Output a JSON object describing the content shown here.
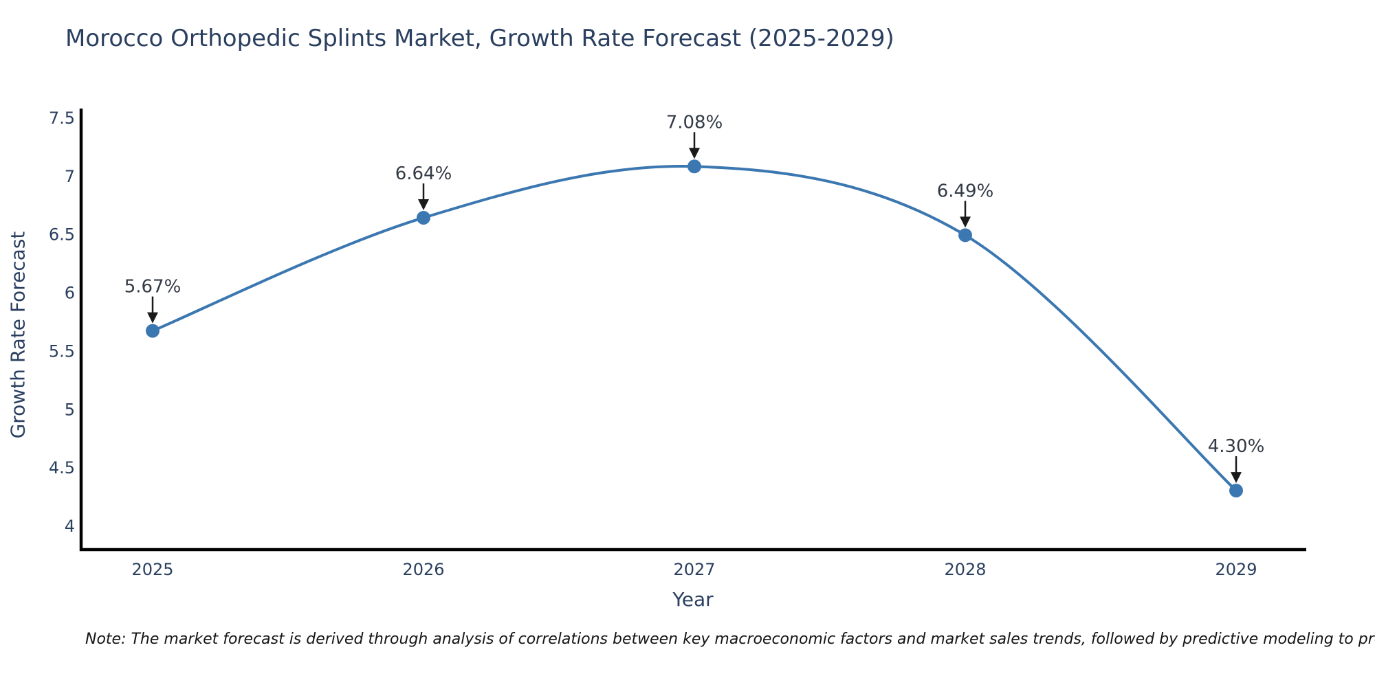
{
  "page": {
    "title": "Morocco Orthopedic Splints Market, Growth Rate Forecast (2025-2029)",
    "note": "Note: The market forecast is derived through analysis of correlations between key macroeconomic factors and market sales trends, followed by predictive modeling to project future sales"
  },
  "chart_data": {
    "type": "line",
    "title": "Morocco Orthopedic Splints Market, Growth Rate Forecast (2025-2029)",
    "xlabel": "Year",
    "ylabel": "Growth Rate Forecast",
    "categories": [
      "2025",
      "2026",
      "2027",
      "2028",
      "2029"
    ],
    "series": [
      {
        "name": "Growth Rate Forecast",
        "values": [
          5.67,
          6.64,
          7.08,
          6.49,
          4.3
        ],
        "point_labels": [
          "5.67%",
          "6.64%",
          "7.08%",
          "6.49%",
          "4.30%"
        ]
      }
    ],
    "y_ticks": [
      7.5,
      7,
      6.5,
      6,
      5.5,
      5,
      4.5,
      4
    ],
    "ylim": [
      3.79,
      7.58
    ],
    "grid": false,
    "legend": "none",
    "line_shape": "spline",
    "annotation_style": "text-with-down-arrow",
    "colors": {
      "line": "#3b77b0",
      "marker": "#3b77b0",
      "axis": "#000000",
      "axis_text": "#2a3f5f",
      "annotation_text": "#323a45",
      "arrow": "#1a1a1a",
      "background": "#ffffff"
    }
  }
}
